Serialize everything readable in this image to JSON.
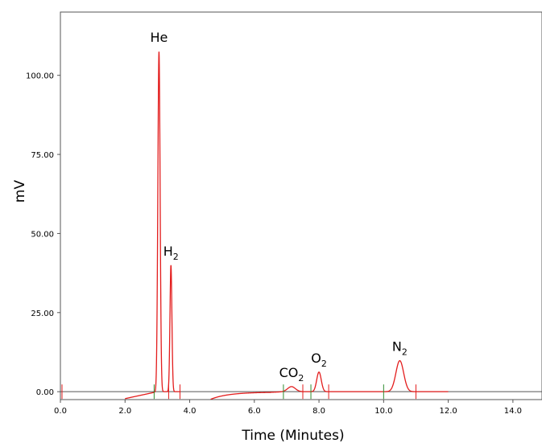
{
  "chart_data": {
    "type": "line",
    "xlabel": "Time (Minutes)",
    "ylabel": "mV",
    "xlim": [
      0,
      14.9
    ],
    "ylim": [
      -2.5,
      120
    ],
    "x_ticks": [
      "0.0",
      "2.0",
      "4.0",
      "6.0",
      "8.0",
      "10.0",
      "12.0",
      "14.0"
    ],
    "y_ticks": [
      "0.00",
      "25.00",
      "50.00",
      "75.00",
      "100.00"
    ],
    "grid": false,
    "baseline_mV": 0,
    "series_color": "#e31d1d",
    "peaks": [
      {
        "label": "He",
        "subscript": "",
        "time": 3.05,
        "height": 107.5
      },
      {
        "label": "H",
        "subscript": "2",
        "time": 3.42,
        "height": 40
      },
      {
        "label": "CO",
        "subscript": "2",
        "time": 7.15,
        "height": 1.6
      },
      {
        "label": "O",
        "subscript": "2",
        "time": 8.0,
        "height": 6.2
      },
      {
        "label": "N",
        "subscript": "2",
        "time": 10.5,
        "height": 9.8
      }
    ],
    "start_markers": [
      2.9,
      6.9,
      7.75,
      10.0
    ],
    "end_markers": [
      0.05,
      3.35,
      3.7,
      7.5,
      8.3,
      11.0
    ]
  }
}
